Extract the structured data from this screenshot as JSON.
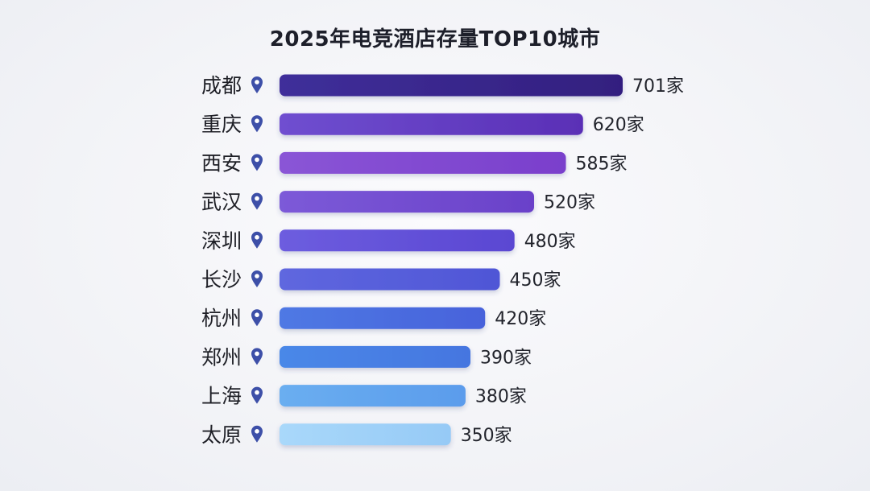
{
  "chart_data": {
    "type": "bar",
    "orientation": "horizontal",
    "title": "2025年电竞酒店存量TOP10城市",
    "categories": [
      "成都",
      "重庆",
      "西安",
      "武汉",
      "深圳",
      "长沙",
      "杭州",
      "郑州",
      "上海",
      "太原"
    ],
    "values": [
      701,
      620,
      585,
      520,
      480,
      450,
      420,
      390,
      380,
      350
    ],
    "value_labels": [
      "701家",
      "620家",
      "585家",
      "520家",
      "480家",
      "450家",
      "420家",
      "390家",
      "380家",
      "350家"
    ],
    "xlabel": "",
    "ylabel": "",
    "grid": false,
    "legend": "none",
    "category_icon": "location-pin-icon",
    "bar_colors": [
      [
        "#3f2f9a",
        "#331f7f"
      ],
      [
        "#6f4fd0",
        "#5a2fb6"
      ],
      [
        "#8a55d6",
        "#7a3fcc"
      ],
      [
        "#7c5ad8",
        "#6a41c9"
      ],
      [
        "#6d5ddf",
        "#5a47d2"
      ],
      [
        "#5f67df",
        "#4f56d6"
      ],
      [
        "#4f79e4",
        "#4762db"
      ],
      [
        "#4a88e8",
        "#4576e0"
      ],
      [
        "#6aaef0",
        "#5b9cec"
      ],
      [
        "#a9d8fa",
        "#96caf6"
      ]
    ],
    "pin_color": "#3d4fa8"
  }
}
